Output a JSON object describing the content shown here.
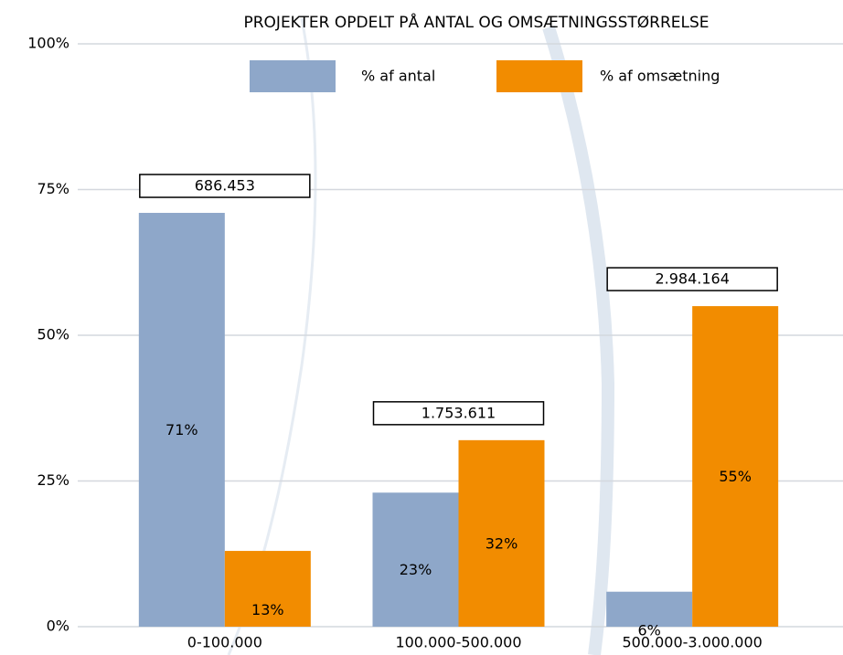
{
  "chart_data": {
    "type": "bar",
    "title": "PROJEKTER OPDELT PÅ ANTAL OG OMSÆTNINGSSTØRRELSE",
    "categories": [
      "0-100.000",
      "100.000-500.000",
      "500.000-3.000.000"
    ],
    "series": [
      {
        "name": "% af antal",
        "color": "#8ea7c9",
        "values": [
          71,
          23,
          6
        ],
        "value_labels": [
          "71%",
          "23%",
          "6%"
        ]
      },
      {
        "name": "% af omsætning",
        "color": "#f28c00",
        "values": [
          13,
          32,
          55
        ],
        "value_labels": [
          "13%",
          "32%",
          "55%"
        ]
      }
    ],
    "annotations": [
      "686.453",
      "1.753.611",
      "2.984.164"
    ],
    "ylim": [
      0,
      100
    ],
    "yticks": [
      {
        "value": 0,
        "label": "0%"
      },
      {
        "value": 25,
        "label": "25%"
      },
      {
        "value": 50,
        "label": "50%"
      },
      {
        "value": 75,
        "label": "75%"
      },
      {
        "value": 100,
        "label": "100%"
      }
    ],
    "grid": true,
    "legend": "top"
  }
}
